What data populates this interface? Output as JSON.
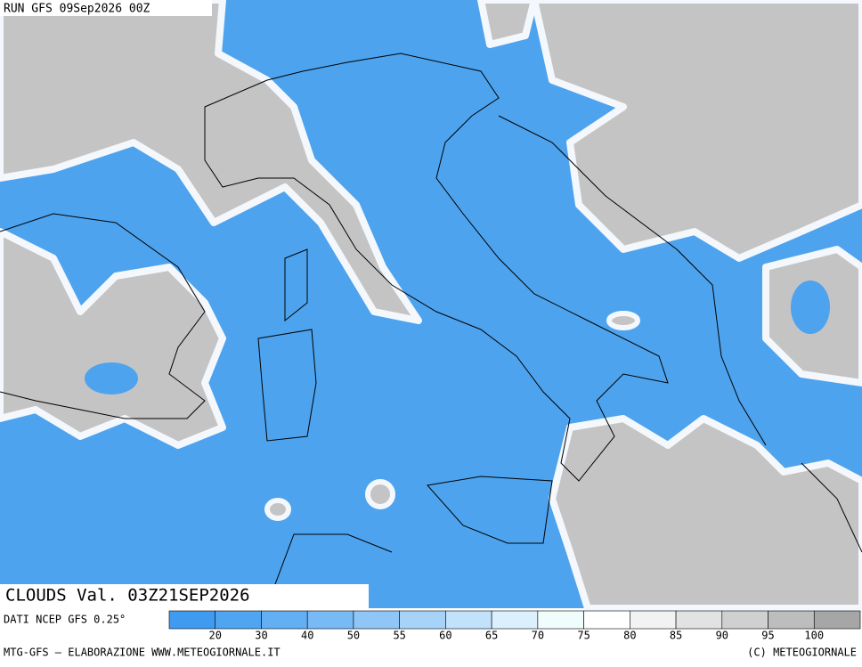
{
  "header": {
    "run": "RUN GFS 09Sep2026 00Z"
  },
  "map": {
    "title": "CLOUDS Val. 03Z21SEP2026",
    "source": "DATI NCEP GFS 0.25°"
  },
  "legend": {
    "labels": [
      20,
      30,
      40,
      50,
      55,
      60,
      65,
      70,
      75,
      80,
      85,
      90,
      95,
      100
    ],
    "colors": [
      "#3f9bef",
      "#50a5f1",
      "#62aff3",
      "#78baf5",
      "#8fc6f7",
      "#a8d3f9",
      "#c2e1fb",
      "#dbeffd",
      "#f0fdfd",
      "#ffffff",
      "#f2f2f2",
      "#e2e2e2",
      "#d0d0d0",
      "#bdbdbd",
      "#a6a6a6"
    ]
  },
  "footer": {
    "left": "MTG-GFS — ELABORAZIONE WWW.METEOGIORNALE.IT",
    "right": "(C) METEOGIORNALE"
  }
}
